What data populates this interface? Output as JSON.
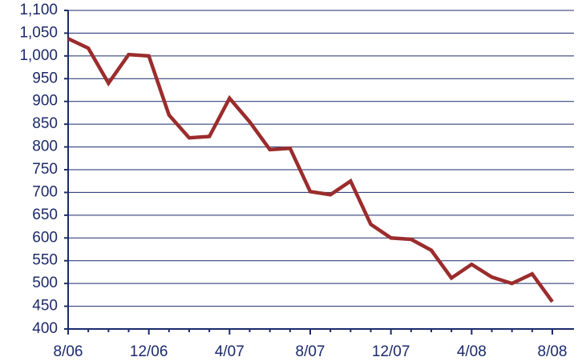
{
  "chart_data": {
    "type": "line",
    "categories": [
      "8/06",
      null,
      null,
      null,
      "12/06",
      null,
      null,
      null,
      "4/07",
      null,
      null,
      null,
      "8/07",
      null,
      null,
      null,
      "12/07",
      null,
      null,
      null,
      "4/08",
      null,
      null,
      null,
      "8/08"
    ],
    "series": [
      {
        "name": null,
        "color": "#9b2c2c",
        "values": [
          1038,
          1017,
          940,
          1003,
          1000,
          870,
          820,
          823,
          907,
          855,
          794,
          797,
          702,
          695,
          725,
          630,
          600,
          597,
          573,
          512,
          542,
          514,
          500,
          521,
          460
        ]
      }
    ],
    "ylim": [
      400,
      1100
    ],
    "yticks": [
      400,
      450,
      500,
      550,
      600,
      650,
      700,
      750,
      800,
      850,
      900,
      950,
      {
        "value": 1000,
        "label": "1,000"
      },
      {
        "value": 1050,
        "label": "1,050"
      },
      {
        "value": 1100,
        "label": "1,100"
      }
    ],
    "grid": true
  }
}
